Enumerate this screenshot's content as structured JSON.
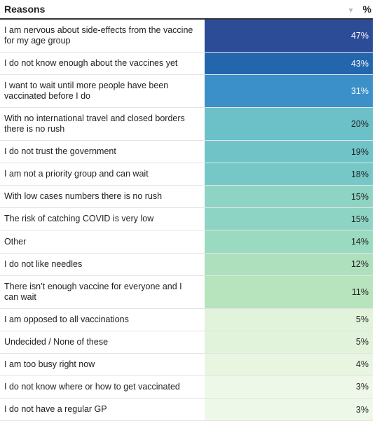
{
  "table": {
    "header": [
      "Reasons",
      "%"
    ],
    "rows": [
      [
        "I am nervous about side-effects from the vaccine for my age group",
        "47%"
      ],
      [
        "I do not know enough about the vaccines yet",
        "43%"
      ],
      [
        "I want to wait until more people have been vaccinated before I do",
        "31%"
      ],
      [
        "With no international travel and closed borders there is no rush",
        "20%"
      ],
      [
        "I do not trust the government",
        "19%"
      ],
      [
        "I am not a priority group and can wait",
        "18%"
      ],
      [
        "With low cases numbers there is no rush",
        "15%"
      ],
      [
        "The risk of catching COVID is very low",
        "15%"
      ],
      [
        "Other",
        "14%"
      ],
      [
        "I do not like needles",
        "12%"
      ],
      [
        "There isn’t enough vaccine for everyone and I can wait",
        "11%"
      ],
      [
        "I am opposed to all vaccinations",
        "5%"
      ],
      [
        "Undecided / None of these",
        "5%"
      ],
      [
        "I am too busy right now",
        "4%"
      ],
      [
        "I do not know where or how to get vaccinated",
        "3%"
      ],
      [
        "I do not have a regular GP",
        "3%"
      ]
    ],
    "cell_colors": [
      "#2c4c98",
      "#2366ad",
      "#3b90c9",
      "#6cc0c8",
      "#70c4c7",
      "#76c8c6",
      "#8ed4c4",
      "#8ed4c4",
      "#9adac1",
      "#aee0be",
      "#b7e4bd",
      "#e2f3dc",
      "#e2f3dc",
      "#e8f6e1",
      "#eef8e8",
      "#eef8e8"
    ]
  }
}
